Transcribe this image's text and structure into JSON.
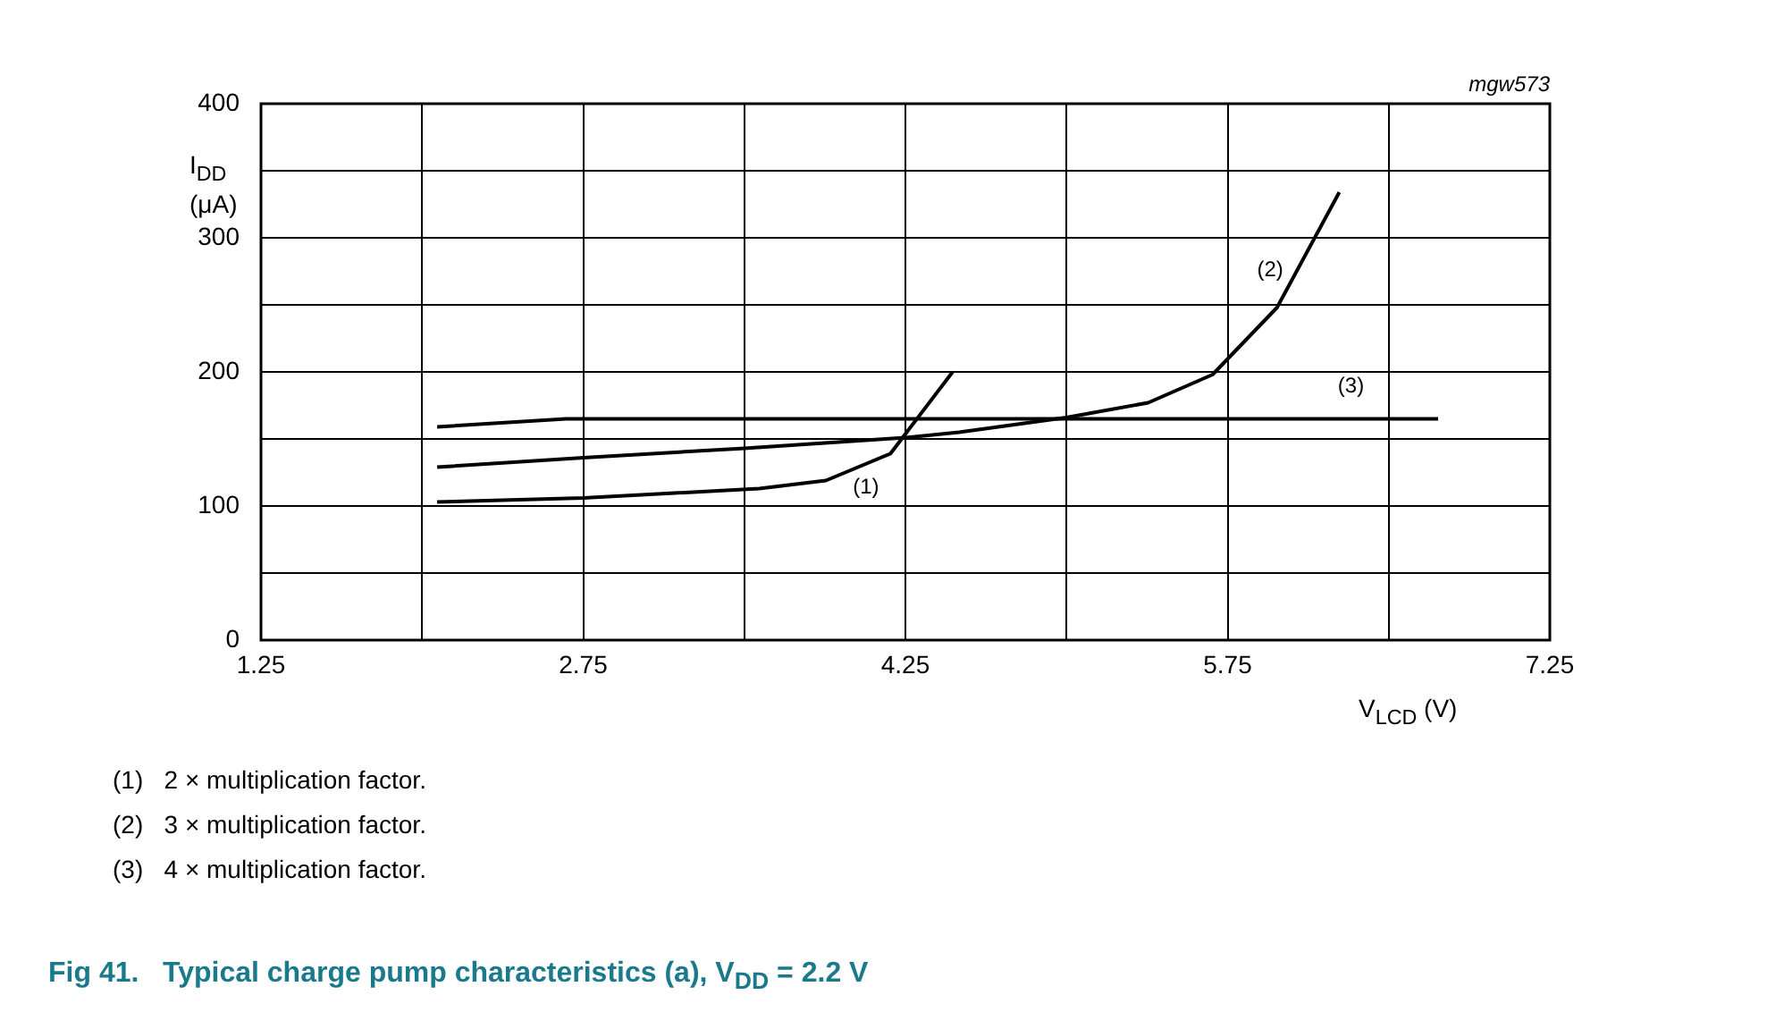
{
  "chart_data": {
    "type": "line",
    "title": "Fig 41.   Typical charge pump characteristics (a), V$_{DD}$ = 2.2 V",
    "xlabel": "V$_{LCD}$ (V)",
    "ylabel": "I$_{DD}$ (μA)",
    "series": [
      {
        "name": "(1)",
        "color": "#000000",
        "x": [
          2.07,
          2.75,
          3.57,
          3.88,
          4.18,
          4.47
        ],
        "values": [
          103,
          106,
          113,
          119,
          139,
          200
        ]
      },
      {
        "name": "(2)",
        "color": "#000000",
        "x": [
          2.07,
          2.75,
          3.5,
          4.25,
          4.5,
          5.0,
          5.38,
          5.68,
          5.98,
          6.27
        ],
        "values": [
          129,
          136,
          143,
          151,
          155,
          166,
          177,
          198,
          248,
          334
        ]
      },
      {
        "name": "(3)",
        "color": "#000000",
        "x": [
          2.07,
          2.67,
          6.73
        ],
        "values": [
          159,
          165,
          165
        ]
      }
    ],
    "xlim": [
      1.25,
      7.25
    ],
    "xticks": [
      1.25,
      {
        "value": 2,
        "label": null
      },
      2.75,
      {
        "value": 3.5,
        "label": null
      },
      4.25,
      {
        "value": 5,
        "label": null
      },
      5.75,
      {
        "value": 6.5,
        "label": null
      },
      7.25
    ],
    "ylim": [
      0,
      400
    ],
    "yticks": [
      0,
      {
        "value": 50,
        "label": null
      },
      100,
      {
        "value": 150,
        "label": null
      },
      200,
      {
        "value": 250,
        "label": null
      },
      300,
      {
        "value": 350,
        "label": null
      },
      400
    ],
    "grid": true,
    "legend": false,
    "marker": "none",
    "line_style": "solid",
    "annotations": [
      "mgw573",
      "(1)   2 × multiplication factor.",
      "(2)   3 × multiplication factor.",
      "(3)   4 × multiplication factor."
    ]
  }
}
